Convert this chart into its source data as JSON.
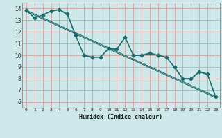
{
  "title": "",
  "xlabel": "Humidex (Indice chaleur)",
  "xlim": [
    -0.5,
    23.5
  ],
  "ylim": [
    5.5,
    14.5
  ],
  "xticks": [
    0,
    1,
    2,
    3,
    4,
    5,
    6,
    7,
    8,
    9,
    10,
    11,
    12,
    13,
    14,
    15,
    16,
    17,
    18,
    19,
    20,
    21,
    22,
    23
  ],
  "yticks": [
    6,
    7,
    8,
    9,
    10,
    11,
    12,
    13,
    14
  ],
  "background_color": "#cce8e8",
  "grid_color": "#d4a0a0",
  "line_color": "#1a6b6b",
  "trend_lines": [
    {
      "x": [
        0,
        23
      ],
      "y": [
        13.85,
        6.45
      ]
    },
    {
      "x": [
        0,
        23
      ],
      "y": [
        13.75,
        6.35
      ]
    }
  ],
  "series": [
    {
      "x": [
        0,
        1,
        2,
        3,
        4,
        5,
        6,
        7,
        8,
        9,
        10,
        11,
        12,
        13,
        14,
        15,
        16,
        17,
        18,
        19,
        20,
        21,
        22,
        23
      ],
      "y": [
        13.85,
        13.2,
        13.45,
        13.8,
        13.9,
        13.55,
        11.7,
        10.0,
        9.85,
        9.85,
        10.6,
        10.55,
        11.55,
        10.0,
        10.0,
        10.2,
        10.0,
        9.85,
        9.0,
        8.0,
        8.0,
        8.6,
        8.4,
        6.45
      ],
      "marker": "D",
      "markersize": 2.5,
      "linewidth": 0.9
    },
    {
      "x": [
        0,
        1,
        2,
        3,
        4,
        5,
        6,
        7,
        8,
        9,
        10,
        11,
        12,
        13,
        14,
        15,
        16,
        17,
        18,
        19,
        20,
        21,
        22,
        23
      ],
      "y": [
        13.85,
        13.2,
        13.45,
        13.75,
        13.9,
        13.45,
        11.65,
        9.98,
        9.82,
        9.82,
        10.55,
        10.5,
        11.5,
        9.98,
        9.98,
        10.15,
        9.98,
        9.82,
        8.95,
        7.95,
        7.95,
        8.55,
        8.35,
        6.35
      ],
      "marker": null,
      "markersize": 0,
      "linewidth": 0.8
    }
  ]
}
